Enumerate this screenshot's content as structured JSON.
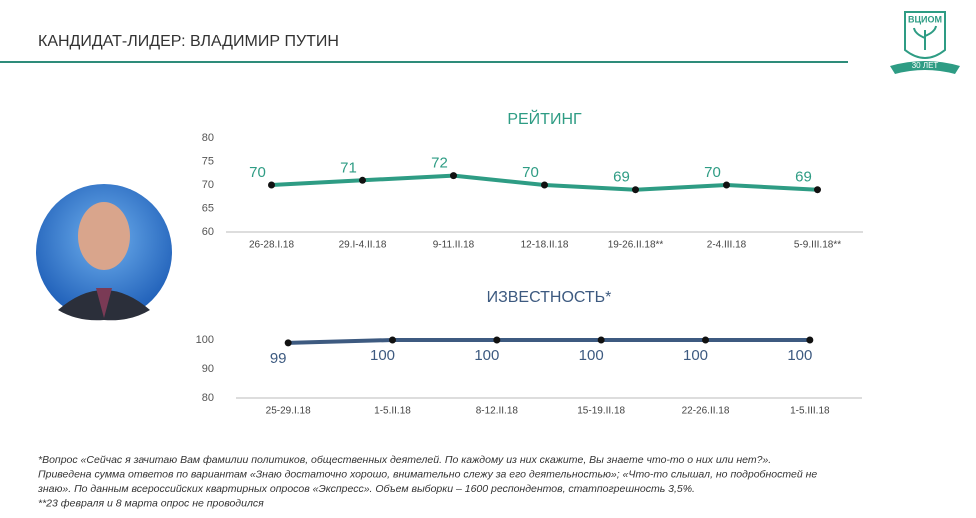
{
  "header": {
    "title": "КАНДИДАТ-ЛИДЕР: ВЛАДИМИР ПУТИН"
  },
  "logo": {
    "name": "ВЦИОМ",
    "anniversary": "30 ЛЕТ"
  },
  "chart_data": [
    {
      "type": "line",
      "title": "РЕЙТИНГ",
      "color": "#2e9c84",
      "categories": [
        "26-28.I.18",
        "29.I-4.II.18",
        "9-11.II.18",
        "12-18.II.18",
        "19-26.II.18**",
        "2-4.III.18",
        "5-9.III.18**"
      ],
      "values": [
        70,
        71,
        72,
        70,
        69,
        70,
        69
      ],
      "ylim": [
        60,
        80
      ],
      "yticks": [
        60,
        65,
        70,
        75,
        80
      ]
    },
    {
      "type": "line",
      "title": "ИЗВЕСТНОСТЬ*",
      "color": "#3d5a80",
      "categories": [
        "25-29.I.18",
        "1-5.II.18",
        "8-12.II.18",
        "15-19.II.18",
        "22-26.II.18",
        "1-5.III.18"
      ],
      "values": [
        99,
        100,
        100,
        100,
        100,
        100
      ],
      "ylim": [
        80,
        100
      ],
      "yticks": [
        80,
        90,
        100
      ]
    }
  ],
  "footnotes": [
    "*Вопрос «Сейчас я зачитаю Вам фамилии политиков, общественных деятелей. По каждому из них скажите, Вы знаете что-то о них или нет?».",
    "Приведена сумма ответов по вариантам «Знаю достаточно хорошо, внимательно слежу за его деятельностью»; «Что-то слышал, но подробностей не",
    "знаю». По данным всероссийских квартирных опросов «Экспресс». Объем выборки – 1600 респондентов, статпогрешность 3,5%.",
    "**23 февраля и 8 марта опрос не проводился"
  ]
}
